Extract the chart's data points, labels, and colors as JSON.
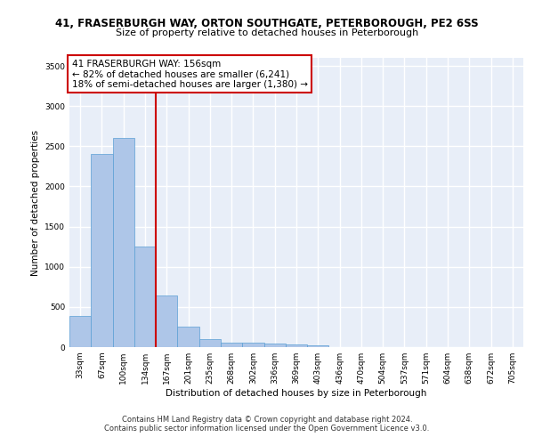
{
  "title_line1": "41, FRASERBURGH WAY, ORTON SOUTHGATE, PETERBOROUGH, PE2 6SS",
  "title_line2": "Size of property relative to detached houses in Peterborough",
  "xlabel": "Distribution of detached houses by size in Peterborough",
  "ylabel": "Number of detached properties",
  "categories": [
    "33sqm",
    "67sqm",
    "100sqm",
    "134sqm",
    "167sqm",
    "201sqm",
    "235sqm",
    "268sqm",
    "302sqm",
    "336sqm",
    "369sqm",
    "403sqm",
    "436sqm",
    "470sqm",
    "504sqm",
    "537sqm",
    "571sqm",
    "604sqm",
    "638sqm",
    "672sqm",
    "705sqm"
  ],
  "values": [
    390,
    2400,
    2600,
    1250,
    640,
    260,
    100,
    60,
    55,
    40,
    30,
    20,
    0,
    0,
    0,
    0,
    0,
    0,
    0,
    0,
    0
  ],
  "bar_color": "#aec6e8",
  "bar_edge_color": "#5a9fd4",
  "vline_color": "#cc0000",
  "vline_x_index": 3.5,
  "annotation_text": "41 FRASERBURGH WAY: 156sqm\n← 82% of detached houses are smaller (6,241)\n18% of semi-detached houses are larger (1,380) →",
  "annotation_box_facecolor": "#ffffff",
  "annotation_box_edgecolor": "#cc0000",
  "ylim": [
    0,
    3600
  ],
  "yticks": [
    0,
    500,
    1000,
    1500,
    2000,
    2500,
    3000,
    3500
  ],
  "background_color": "#e8eef8",
  "grid_color": "#ffffff",
  "footer_line1": "Contains HM Land Registry data © Crown copyright and database right 2024.",
  "footer_line2": "Contains public sector information licensed under the Open Government Licence v3.0.",
  "title_fontsize": 8.5,
  "subtitle_fontsize": 8,
  "axis_label_fontsize": 7.5,
  "tick_fontsize": 6.5,
  "annotation_fontsize": 7.5,
  "footer_fontsize": 6
}
